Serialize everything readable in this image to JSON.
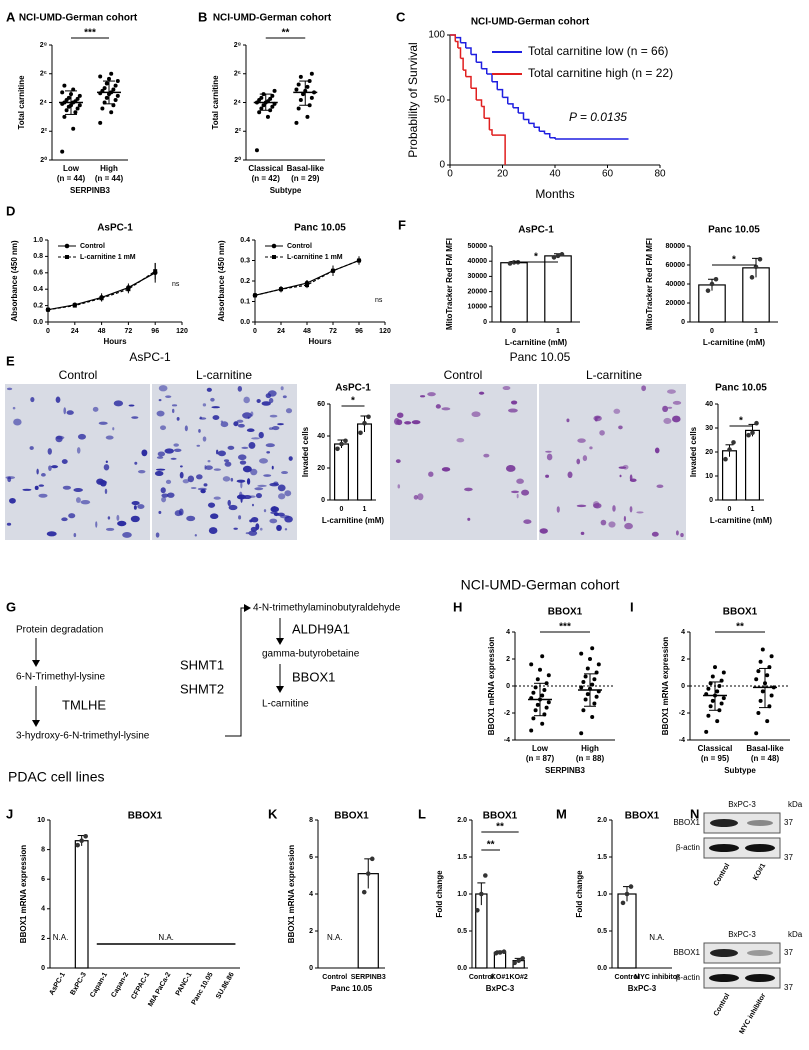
{
  "panel_letters": [
    "A",
    "B",
    "C",
    "D",
    "E",
    "F",
    "G",
    "H",
    "I",
    "J",
    "K",
    "L",
    "M",
    "N"
  ],
  "headings": {
    "cohort": "NCI-UMD-German cohort",
    "cell_lines": "PDAC cell lines"
  },
  "micrographs": {
    "left_title": "AsPC-1",
    "right_title": "Panc 10.05",
    "labels": [
      "Control",
      "L-carnitine",
      "Control",
      "L-carnitine"
    ]
  },
  "pathway": {
    "nodes": [
      "Protein degradation",
      "6-N-Trimethyl-lysine",
      "3-hydroxy-6-N-trimethyl-lysine",
      "4-N-trimethylaminobutyraldehyde",
      "gamma-butyrobetaine",
      "L-carnitine"
    ],
    "enzymes": [
      "TMLHE",
      "SHMT1",
      "SHMT2",
      "ALDH9A1",
      "BBOX1"
    ]
  },
  "blots": [
    {
      "cell_line": "BxPC-3",
      "unit": "kDa",
      "proteins": [
        "BBOX1",
        "β-actin"
      ],
      "sizes": [
        37,
        37
      ],
      "lanes": [
        "Control",
        "KO#1"
      ]
    },
    {
      "cell_line": "BxPC-3",
      "unit": "kDa",
      "proteins": [
        "BBOX1",
        "β-actin"
      ],
      "sizes": [
        37,
        37
      ],
      "lanes": [
        "Control",
        "MYC inhibitor"
      ]
    }
  ],
  "chart_data": [
    {
      "type": "dot",
      "title": "NCI-UMD-German cohort",
      "ylabel": "Total carnitine",
      "xlabel": "SERPINB3",
      "categories": [
        "Low",
        "High"
      ],
      "category_notes": [
        "(n = 44)",
        "(n = 44)"
      ],
      "log_y": true,
      "ylim": [
        1,
        256
      ],
      "yticks": [
        {
          "value": 1,
          "label": "2⁰"
        },
        {
          "value": 4,
          "label": "2²"
        },
        {
          "value": 16,
          "label": "2⁴"
        },
        {
          "value": 64,
          "label": "2⁶"
        },
        {
          "value": 256,
          "label": "2⁸"
        }
      ],
      "points": [
        [
          1.5,
          4.5,
          8,
          10,
          11,
          12,
          13,
          14,
          14,
          15,
          16,
          16,
          17,
          18,
          19,
          20,
          22,
          24,
          26,
          30,
          36
        ],
        [
          6,
          10,
          12,
          14,
          16,
          18,
          20,
          22,
          24,
          25,
          26,
          28,
          30,
          32,
          36,
          40,
          45,
          50,
          56,
          64
        ]
      ],
      "means": [
        16,
        26
      ],
      "error_bars": [
        [
          9,
          28
        ],
        [
          15,
          45
        ]
      ],
      "significance": [
        "***"
      ]
    },
    {
      "type": "dot",
      "title": "NCI-UMD-German cohort",
      "ylabel": "Total carnitine",
      "xlabel": "Subtype",
      "categories": [
        "Classical",
        "Basal-like"
      ],
      "category_notes": [
        "(n = 42)",
        "(n = 29)"
      ],
      "log_y": true,
      "ylim": [
        1,
        256
      ],
      "yticks": [
        {
          "value": 1,
          "label": "2⁰"
        },
        {
          "value": 4,
          "label": "2²"
        },
        {
          "value": 16,
          "label": "2⁴"
        },
        {
          "value": 64,
          "label": "2⁶"
        },
        {
          "value": 256,
          "label": "2⁸"
        }
      ],
      "points": [
        [
          1.6,
          8,
          10,
          11,
          12,
          13,
          14,
          15,
          16,
          16,
          17,
          18,
          19,
          20,
          22,
          24,
          28
        ],
        [
          6,
          8,
          12,
          14,
          18,
          20,
          24,
          26,
          28,
          30,
          34,
          38,
          45,
          55,
          64
        ]
      ],
      "means": [
        16,
        26
      ],
      "error_bars": [
        [
          11,
          24
        ],
        [
          14,
          45
        ]
      ],
      "significance": [
        "**"
      ]
    },
    {
      "type": "survival",
      "title": "NCI-UMD-German cohort",
      "ylabel": "Probability of Survival",
      "xlabel": "Months",
      "xlim": [
        0,
        80
      ],
      "xticks": [
        0,
        20,
        40,
        60,
        80
      ],
      "ylim": [
        0,
        100
      ],
      "yticks": [
        0,
        50,
        100
      ],
      "series": [
        {
          "name": "Total carnitine low (n = 66)",
          "color": "#1f1fe0",
          "x": [
            0,
            2,
            4,
            6,
            8,
            10,
            12,
            14,
            16,
            18,
            20,
            22,
            24,
            26,
            28,
            30,
            32,
            34,
            36,
            38,
            40,
            68
          ],
          "values": [
            100,
            98,
            94,
            90,
            85,
            79,
            74,
            70,
            64,
            58,
            52,
            47,
            44,
            40,
            35,
            32,
            29,
            26,
            24,
            21,
            20,
            20
          ]
        },
        {
          "name": "Total carnitine high (n = 22)",
          "color": "#e01f1f",
          "x": [
            0,
            2,
            3,
            4,
            5,
            6,
            8,
            10,
            12,
            13,
            15,
            16,
            20,
            21
          ],
          "values": [
            100,
            95,
            90,
            82,
            73,
            68,
            59,
            50,
            45,
            36,
            27,
            23,
            23,
            0
          ]
        }
      ],
      "annotation": "P = 0.0135"
    },
    {
      "type": "line",
      "title": "AsPC-1",
      "ylabel": "Absorbance (450 nm)",
      "xlabel": "Hours",
      "x": [
        0,
        24,
        48,
        72,
        96
      ],
      "xlim": [
        0,
        120
      ],
      "xticks": [
        0,
        24,
        48,
        72,
        96,
        120
      ],
      "ylim": [
        0,
        1
      ],
      "yticks": [
        {
          "value": 0,
          "label": "0.0"
        },
        0.2,
        0.4,
        0.6,
        0.8,
        {
          "value": 1,
          "label": "1.0"
        }
      ],
      "series": [
        {
          "name": "Control",
          "color": "#000000",
          "marker": "circle",
          "values": [
            0.15,
            0.21,
            0.3,
            0.42,
            0.6
          ],
          "errors": [
            0.01,
            0.02,
            0.05,
            0.05,
            0.12
          ]
        },
        {
          "name": "L-carnitine 1 mM",
          "color": "#000000",
          "marker": "square",
          "dashed": true,
          "values": [
            0.15,
            0.2,
            0.29,
            0.4,
            0.62
          ],
          "errors": [
            0.01,
            0.02,
            0.04,
            0.05,
            0.1
          ]
        }
      ],
      "annotation": "ns"
    },
    {
      "type": "line",
      "title": "Panc 10.05",
      "ylabel": "Absorbance (450 nm)",
      "xlabel": "Hours",
      "x": [
        0,
        24,
        48,
        72,
        96
      ],
      "xlim": [
        0,
        120
      ],
      "xticks": [
        0,
        24,
        48,
        72,
        96,
        120
      ],
      "ylim": [
        0,
        0.4
      ],
      "yticks": [
        {
          "value": 0,
          "label": "0.0"
        },
        0.1,
        0.2,
        0.3,
        0.4
      ],
      "series": [
        {
          "name": "Control",
          "color": "#000000",
          "marker": "circle",
          "values": [
            0.13,
            0.16,
            0.19,
            0.25,
            0.3
          ],
          "errors": [
            0.005,
            0.015,
            0.015,
            0.025,
            0.02
          ]
        },
        {
          "name": "L-carnitine 1 mM",
          "color": "#000000",
          "marker": "square",
          "dashed": true,
          "values": [
            0.13,
            0.16,
            0.18,
            0.25,
            0.3
          ],
          "errors": [
            0.005,
            0.015,
            0.015,
            0.025,
            0.02
          ]
        }
      ],
      "annotation": "ns"
    },
    {
      "type": "bar",
      "title": "AsPC-1",
      "ylabel": "MitoTracker Red FM MFI",
      "xlabel": "L-carnitine (mM)",
      "categories": [
        "0",
        "1"
      ],
      "values": [
        39000,
        43500
      ],
      "errors": [
        800,
        1400
      ],
      "points": [
        [
          38500,
          39200,
          39300
        ],
        [
          42500,
          43500,
          44500
        ]
      ],
      "ylim": [
        0,
        50000
      ],
      "yticks": [
        0,
        10000,
        20000,
        30000,
        40000,
        50000
      ],
      "significance": [
        "*"
      ]
    },
    {
      "type": "bar",
      "title": "Panc 10.05",
      "ylabel": "MitoTracker Red FM MFI",
      "xlabel": "L-carnitine (mM)",
      "categories": [
        "0",
        "1"
      ],
      "values": [
        39000,
        57000
      ],
      "errors": [
        6000,
        10000
      ],
      "points": [
        [
          33000,
          40000,
          45000
        ],
        [
          47000,
          58000,
          66000
        ]
      ],
      "ylim": [
        0,
        80000
      ],
      "yticks": [
        0,
        20000,
        40000,
        60000,
        80000
      ],
      "significance": [
        "*"
      ]
    },
    {
      "type": "bar",
      "title": "AsPC-1",
      "ylabel": "Invaded cells",
      "xlabel": "L-carnitine (mM)",
      "categories": [
        "0",
        "1"
      ],
      "values": [
        35,
        47.5
      ],
      "errors": [
        2.5,
        5
      ],
      "points": [
        [
          32,
          35,
          37
        ],
        [
          42,
          48,
          52
        ]
      ],
      "ylim": [
        0,
        60
      ],
      "yticks": [
        0,
        20,
        40,
        60
      ],
      "significance": [
        "*"
      ]
    },
    {
      "type": "bar",
      "title": "Panc 10.05",
      "ylabel": "Invaded cells",
      "xlabel": "L-carnitine (mM)",
      "categories": [
        "0",
        "1"
      ],
      "values": [
        20.5,
        29
      ],
      "errors": [
        2.5,
        2.5
      ],
      "points": [
        [
          17,
          21,
          24
        ],
        [
          27,
          28,
          32
        ]
      ],
      "ylim": [
        0,
        40
      ],
      "yticks": [
        0,
        10,
        20,
        30,
        40
      ],
      "significance": [
        "*"
      ]
    },
    {
      "type": "dot",
      "title": "BBOX1",
      "ylabel": "BBOX1 mRNA expression",
      "xlabel": "SERPINB3",
      "categories": [
        "Low",
        "High"
      ],
      "category_notes": [
        "(n = 87)",
        "(n = 88)"
      ],
      "ylim": [
        -4,
        4
      ],
      "yticks": [
        -4,
        -2,
        0,
        2,
        4
      ],
      "zero_line": true,
      "points": [
        [
          -3.3,
          -2.8,
          -2.4,
          -2.1,
          -1.8,
          -1.6,
          -1.4,
          -1.2,
          -1.0,
          -0.9,
          -0.7,
          -0.5,
          -0.3,
          -0.1,
          0.2,
          0.5,
          0.8,
          1.2,
          1.6,
          2.2
        ],
        [
          -3.5,
          -2.3,
          -1.8,
          -1.3,
          -1.0,
          -0.8,
          -0.6,
          -0.4,
          -0.2,
          -0.1,
          0.1,
          0.3,
          0.5,
          0.7,
          1.0,
          1.3,
          1.6,
          2.0,
          2.4,
          2.8
        ]
      ],
      "means": [
        -1.0,
        -0.3
      ],
      "error_bars": [
        [
          -2.2,
          0.2
        ],
        [
          -1.5,
          0.9
        ]
      ],
      "significance": [
        "***"
      ]
    },
    {
      "type": "dot",
      "title": "BBOX1",
      "ylabel": "BBOX1 mRNA expression",
      "xlabel": "Subtype",
      "categories": [
        "Classical",
        "Basal-like"
      ],
      "category_notes": [
        "(n = 95)",
        "(n = 48)"
      ],
      "ylim": [
        -4,
        4
      ],
      "yticks": [
        -4,
        -2,
        0,
        2,
        4
      ],
      "zero_line": true,
      "points": [
        [
          -3.4,
          -2.6,
          -2.2,
          -1.8,
          -1.5,
          -1.3,
          -1.1,
          -0.9,
          -0.7,
          -0.6,
          -0.4,
          -0.2,
          0,
          0.2,
          0.4,
          0.7,
          1.0,
          1.4
        ],
        [
          -3.5,
          -2.6,
          -2.0,
          -1.5,
          -1.1,
          -0.7,
          -0.4,
          -0.1,
          0.2,
          0.5,
          0.8,
          1.1,
          1.4,
          1.8,
          2.2,
          2.7
        ]
      ],
      "means": [
        -0.7,
        -0.1
      ],
      "error_bars": [
        [
          -1.8,
          0.3
        ],
        [
          -1.6,
          1.3
        ]
      ],
      "significance": [
        "**"
      ]
    },
    {
      "type": "bar",
      "title": "BBOX1",
      "ylabel": "BBOX1 mRNA expression",
      "categories": [
        "AsPC-1",
        "BxPC-3",
        "Capan-1",
        "Capan-2",
        "CFPAC-1",
        "MIA PaCa-2",
        "PANC-1",
        "Panc 10.05",
        "SU.86.86"
      ],
      "values": [
        null,
        8.6,
        null,
        null,
        null,
        null,
        null,
        null,
        null
      ],
      "errors": [
        null,
        0.35,
        null,
        null,
        null,
        null,
        null,
        null,
        null
      ],
      "points": [
        null,
        [
          8.3,
          8.6,
          8.9
        ],
        null,
        null,
        null,
        null,
        null,
        null,
        null
      ],
      "ylim": [
        0,
        10
      ],
      "yticks": [
        0,
        2,
        4,
        6,
        8,
        10
      ],
      "annotations": [
        "N.A.",
        "N.A."
      ]
    },
    {
      "type": "bar",
      "title": "BBOX1",
      "ylabel": "BBOX1 mRNA expression",
      "xlabel": "Panc 10.05",
      "categories": [
        "Control",
        "SERPINB3"
      ],
      "values": [
        null,
        5.1
      ],
      "errors": [
        null,
        0.8
      ],
      "points": [
        null,
        [
          4.1,
          5.1,
          5.9
        ]
      ],
      "ylim": [
        0,
        8
      ],
      "yticks": [
        0,
        2,
        4,
        6,
        8
      ],
      "annotations": [
        "N.A."
      ]
    },
    {
      "type": "bar",
      "title": "BBOX1",
      "ylabel": "Fold change",
      "xlabel": "BxPC-3",
      "categories": [
        "Control",
        "KO#1",
        "KO#2"
      ],
      "values": [
        1.0,
        0.21,
        0.1
      ],
      "errors": [
        0.15,
        0.02,
        0.03
      ],
      "points": [
        [
          0.78,
          1.0,
          1.25
        ],
        [
          0.2,
          0.21,
          0.22
        ],
        [
          0.07,
          0.1,
          0.13
        ]
      ],
      "ylim": [
        0,
        2
      ],
      "yticks": [
        {
          "value": 0,
          "label": "0.0"
        },
        0.5,
        {
          "value": 1,
          "label": "1.0"
        },
        1.5,
        {
          "value": 2,
          "label": "2.0"
        }
      ],
      "significance": [
        "**",
        "**"
      ]
    },
    {
      "type": "bar",
      "title": "BBOX1",
      "ylabel": "Fold change",
      "xlabel": "BxPC-3",
      "categories": [
        "Control",
        "MYC inhibitor"
      ],
      "values": [
        1.0,
        null
      ],
      "errors": [
        0.1,
        null
      ],
      "points": [
        [
          0.88,
          1.0,
          1.1
        ],
        null
      ],
      "ylim": [
        0,
        2
      ],
      "yticks": [
        {
          "value": 0,
          "label": "0.0"
        },
        0.5,
        {
          "value": 1,
          "label": "1.0"
        },
        1.5,
        {
          "value": 2,
          "label": "2.0"
        }
      ],
      "annotations": [
        "N.A."
      ]
    }
  ]
}
